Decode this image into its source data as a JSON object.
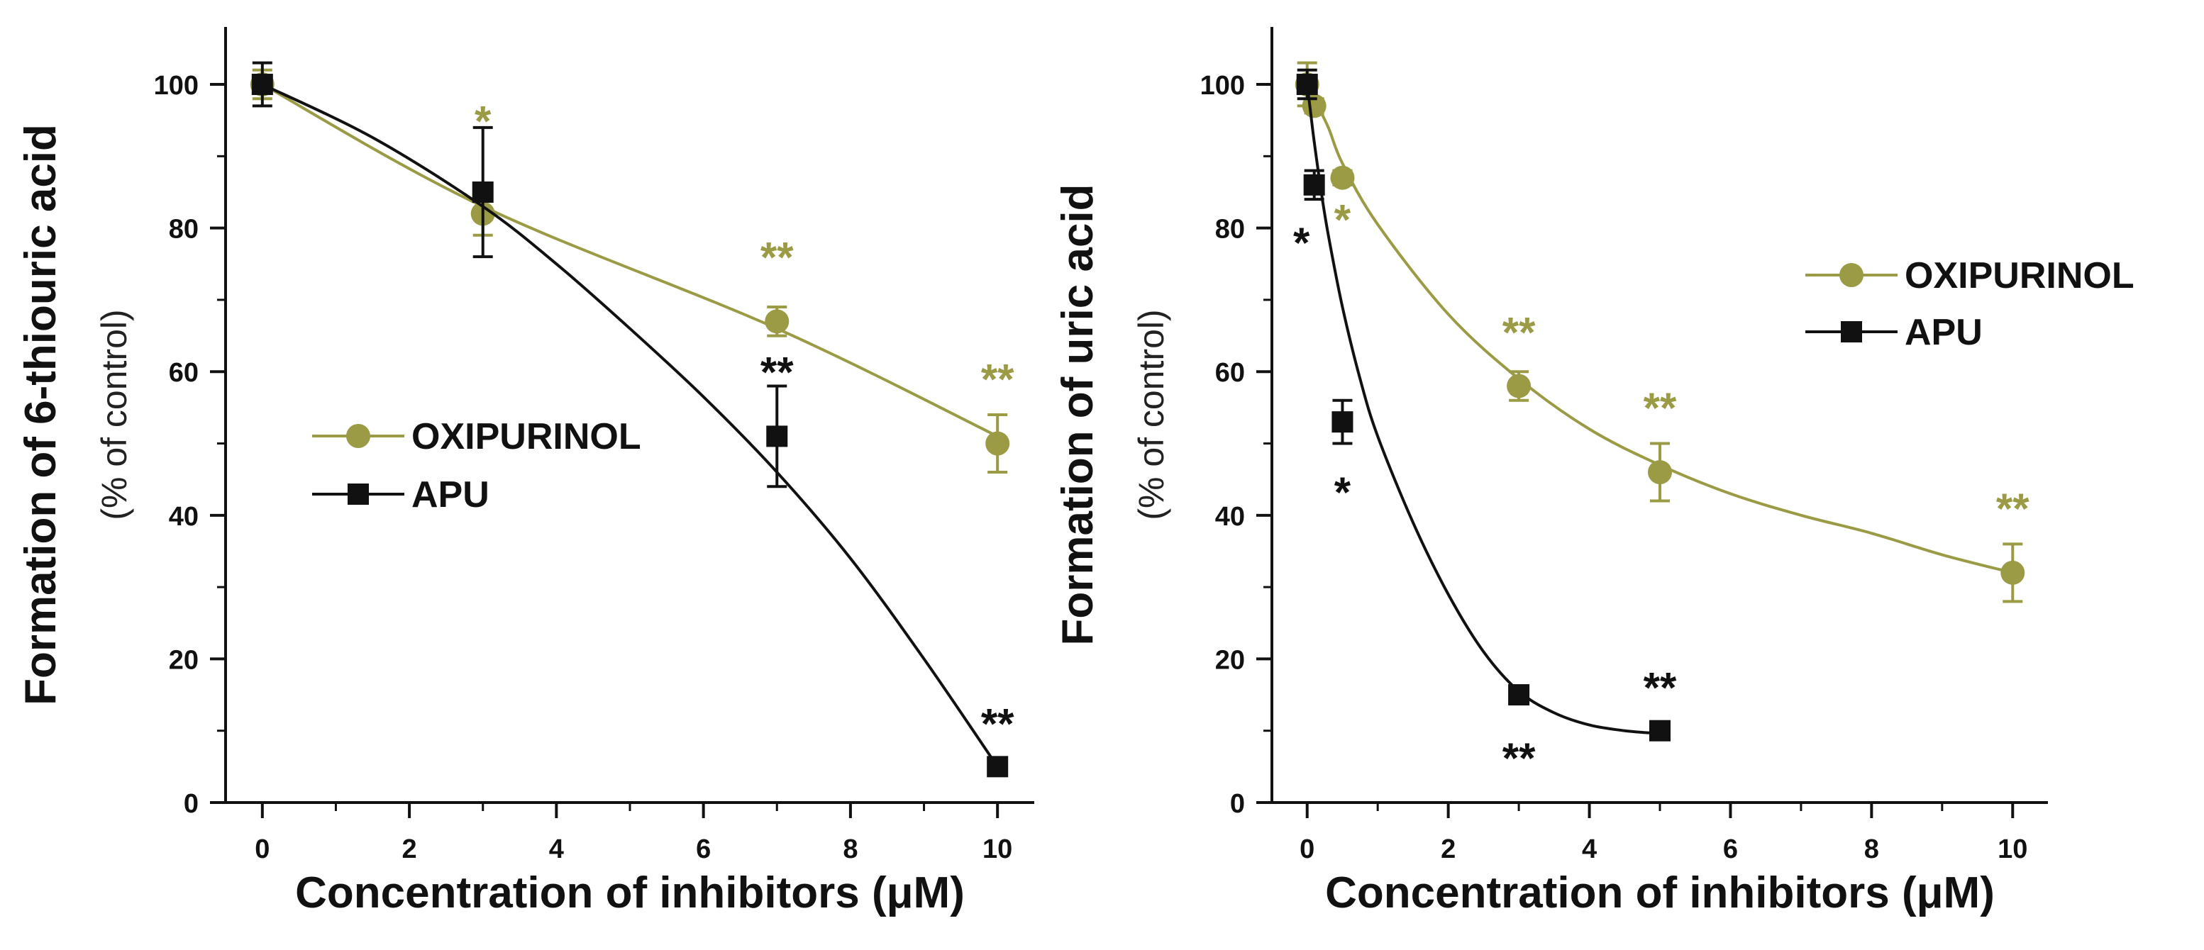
{
  "colors": {
    "oxipurinol": "#9b9a45",
    "apu": "#111111",
    "axis": "#111111"
  },
  "chart_data": [
    {
      "type": "scatter",
      "xlabel": "Concentration of inhibitors (μM)",
      "ylabel": "Formation of 6-thiouric acid",
      "ylabel_sub": "(% of control)",
      "xlim": [
        -0.5,
        10.5
      ],
      "ylim": [
        0,
        108
      ],
      "xticks": [
        0,
        2,
        4,
        6,
        8,
        10
      ],
      "yticks": [
        0,
        20,
        40,
        60,
        80,
        100
      ],
      "xtick_labels": [
        "0",
        "2",
        "4",
        "6",
        "8",
        "10"
      ],
      "ytick_labels": [
        "0",
        "20",
        "40",
        "60",
        "80",
        "100"
      ],
      "legend": {
        "position": "center-left",
        "entries": [
          "OXIPURINOL",
          "APU"
        ]
      },
      "series": [
        {
          "name": "OXIPURINOL",
          "marker": "circle",
          "x": [
            0,
            3,
            7,
            10
          ],
          "y": [
            100,
            82,
            67,
            50
          ],
          "err": [
            2,
            3,
            2,
            4
          ],
          "sig": [
            "",
            "*",
            "**",
            "**"
          ],
          "fit": [
            [
              0,
              100
            ],
            [
              3,
              83
            ],
            [
              7,
              66
            ],
            [
              10,
              51
            ]
          ]
        },
        {
          "name": "APU",
          "marker": "square",
          "x": [
            0,
            3,
            7,
            10
          ],
          "y": [
            100,
            85,
            51,
            5
          ],
          "err": [
            3,
            9,
            7,
            0
          ],
          "sig": [
            "",
            "",
            "**",
            "**"
          ],
          "fit": [
            [
              0,
              100
            ],
            [
              1.5,
              92.6
            ],
            [
              3,
              83
            ],
            [
              4,
              75
            ],
            [
              5,
              66
            ],
            [
              6,
              56.5
            ],
            [
              7,
              46
            ],
            [
              8,
              34
            ],
            [
              9,
              20
            ],
            [
              10,
              5
            ]
          ]
        }
      ]
    },
    {
      "type": "scatter",
      "xlabel": "Concentration of inhibitors (μM)",
      "ylabel": "Formation of uric acid",
      "ylabel_sub": "(% of control)",
      "xlim": [
        -0.5,
        10.5
      ],
      "ylim": [
        0,
        108
      ],
      "xticks": [
        0,
        2,
        4,
        6,
        8,
        10
      ],
      "yticks": [
        0,
        20,
        40,
        60,
        80,
        100
      ],
      "xtick_labels": [
        "0",
        "2",
        "4",
        "6",
        "8",
        "10"
      ],
      "ytick_labels": [
        "0",
        "20",
        "40",
        "60",
        "80",
        "100"
      ],
      "legend": {
        "position": "top-right",
        "entries": [
          "OXIPURINOL",
          "APU"
        ]
      },
      "series": [
        {
          "name": "OXIPURINOL",
          "marker": "circle",
          "x": [
            0,
            0.1,
            0.5,
            3,
            5,
            10
          ],
          "y": [
            100,
            97,
            87,
            58,
            46,
            32
          ],
          "err": [
            3,
            1,
            1,
            2,
            4,
            4
          ],
          "sig": [
            "",
            "",
            "*",
            "**",
            "**",
            "**"
          ],
          "fit": [
            [
              0,
              100
            ],
            [
              0.1,
              98
            ],
            [
              0.3,
              94
            ],
            [
              0.5,
              89
            ],
            [
              1,
              80.5
            ],
            [
              2,
              68
            ],
            [
              3,
              59
            ],
            [
              4,
              52
            ],
            [
              5,
              47
            ],
            [
              6,
              43
            ],
            [
              7,
              40
            ],
            [
              8,
              37.5
            ],
            [
              9,
              34.5
            ],
            [
              10,
              32
            ]
          ]
        },
        {
          "name": "APU",
          "marker": "square",
          "x": [
            0,
            0.1,
            0.5,
            3,
            5
          ],
          "y": [
            100,
            86,
            53,
            15,
            10
          ],
          "err": [
            2,
            2,
            3,
            0,
            0
          ],
          "sig": [
            "",
            "*",
            "*",
            "**",
            "**"
          ],
          "fit": [
            [
              0,
              100
            ],
            [
              0.05,
              96
            ],
            [
              0.1,
              92
            ],
            [
              0.2,
              85
            ],
            [
              0.3,
              79
            ],
            [
              0.5,
              69
            ],
            [
              0.75,
              59
            ],
            [
              1,
              51
            ],
            [
              1.5,
              39
            ],
            [
              2,
              29
            ],
            [
              2.5,
              21
            ],
            [
              3,
              15.5
            ],
            [
              3.5,
              12.5
            ],
            [
              4,
              10.8
            ],
            [
              4.5,
              10
            ],
            [
              5,
              9.6
            ]
          ]
        }
      ]
    }
  ]
}
